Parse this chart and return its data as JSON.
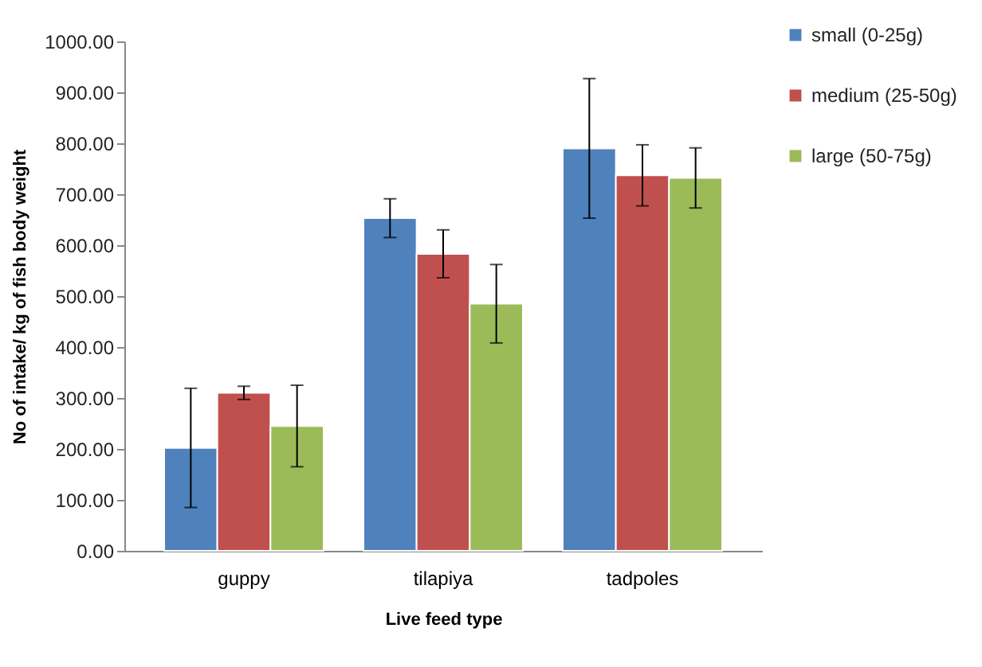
{
  "chart_data": {
    "type": "bar",
    "xlabel": "Live feed type",
    "ylabel": "No of intake/ kg of fish body weight",
    "categories": [
      "guppy",
      "tilapiya",
      "tadpoles"
    ],
    "series": [
      {
        "name": "small (0-25g)",
        "color": "#4f81bd",
        "values": [
          202,
          653,
          790
        ],
        "errors": [
          117,
          38,
          137
        ]
      },
      {
        "name": "medium (25-50g)",
        "color": "#c0504d",
        "values": [
          310,
          583,
          737
        ],
        "errors": [
          13,
          47,
          60
        ]
      },
      {
        "name": "large (50-75g)",
        "color": "#9bbb59",
        "values": [
          245,
          485,
          732
        ],
        "errors": [
          80,
          77,
          59
        ]
      }
    ],
    "ylim": [
      0,
      1000
    ],
    "yticks": [
      {
        "value": 0,
        "label": "0.00"
      },
      {
        "value": 100,
        "label": "100.00"
      },
      {
        "value": 200,
        "label": "200.00"
      },
      {
        "value": 300,
        "label": "300.00"
      },
      {
        "value": 400,
        "label": "400.00"
      },
      {
        "value": 500,
        "label": "500.00"
      },
      {
        "value": 600,
        "label": "600.00"
      },
      {
        "value": 700,
        "label": "700.00"
      },
      {
        "value": 800,
        "label": "800.00"
      },
      {
        "value": 900,
        "label": "900.00"
      },
      {
        "value": 1000,
        "label": "1000.00"
      }
    ],
    "grid": false,
    "legend": "top right"
  }
}
